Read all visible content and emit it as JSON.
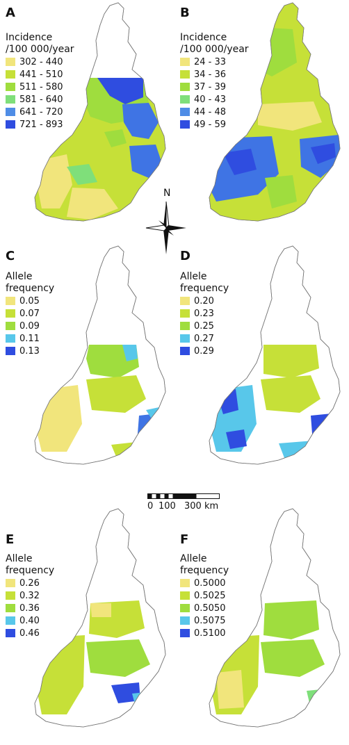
{
  "colors": {
    "yellow": "#f1e57c",
    "yellowgreen": "#c6e038",
    "green": "#9fdd3e",
    "lightgreen": "#7fdf7a",
    "cyan": "#58c7ea",
    "blue": "#3f74e4",
    "darkblue": "#2f4de0",
    "outline": "#777777"
  },
  "panels": [
    {
      "letter": "A",
      "title": [
        "Incidence",
        "/100 000/year"
      ],
      "items": [
        {
          "label": "302 - 440",
          "color": "#f1e57c"
        },
        {
          "label": "441 - 510",
          "color": "#c6e038"
        },
        {
          "label": "511 - 580",
          "color": "#9fdd3e"
        },
        {
          "label": "581 - 640",
          "color": "#7fdf7a"
        },
        {
          "label": "641 - 720",
          "color": "#4f8de6"
        },
        {
          "label": "721 - 893",
          "color": "#2f4de0"
        }
      ]
    },
    {
      "letter": "B",
      "title": [
        "Incidence",
        "/100 000/year"
      ],
      "items": [
        {
          "label": "24 - 33",
          "color": "#f1e57c"
        },
        {
          "label": "34 - 36",
          "color": "#c6e038"
        },
        {
          "label": "37 - 39",
          "color": "#9fdd3e"
        },
        {
          "label": "40 - 43",
          "color": "#7fdf7a"
        },
        {
          "label": "44 - 48",
          "color": "#4f8de6"
        },
        {
          "label": "49 - 59",
          "color": "#2f4de0"
        }
      ]
    },
    {
      "letter": "C",
      "title": [
        "Allele",
        "frequency"
      ],
      "items": [
        {
          "label": "0.05",
          "color": "#f1e57c"
        },
        {
          "label": "0.07",
          "color": "#c6e038"
        },
        {
          "label": "0.09",
          "color": "#9fdd3e"
        },
        {
          "label": "0.11",
          "color": "#58c7ea"
        },
        {
          "label": "0.13",
          "color": "#2f4de0"
        }
      ]
    },
    {
      "letter": "D",
      "title": [
        "Allele",
        "frequency"
      ],
      "items": [
        {
          "label": "0.20",
          "color": "#f1e57c"
        },
        {
          "label": "0.23",
          "color": "#c6e038"
        },
        {
          "label": "0.25",
          "color": "#9fdd3e"
        },
        {
          "label": "0.27",
          "color": "#58c7ea"
        },
        {
          "label": "0.29",
          "color": "#2f4de0"
        }
      ]
    },
    {
      "letter": "E",
      "title": [
        "Allele",
        "frequency"
      ],
      "items": [
        {
          "label": "0.26",
          "color": "#f1e57c"
        },
        {
          "label": "0.32",
          "color": "#c6e038"
        },
        {
          "label": "0.36",
          "color": "#9fdd3e"
        },
        {
          "label": "0.40",
          "color": "#58c7ea"
        },
        {
          "label": "0.46",
          "color": "#2f4de0"
        }
      ]
    },
    {
      "letter": "F",
      "title": [
        "Allele",
        "frequency"
      ],
      "items": [
        {
          "label": "0.5000",
          "color": "#f1e57c"
        },
        {
          "label": "0.5025",
          "color": "#c6e038"
        },
        {
          "label": "0.5050",
          "color": "#9fdd3e"
        },
        {
          "label": "0.5075",
          "color": "#58c7ea"
        },
        {
          "label": "0.5100",
          "color": "#2f4de0"
        }
      ]
    }
  ],
  "compass": {
    "north_label": "N"
  },
  "scale_bar": {
    "label_zero": "0",
    "label_mid": "100",
    "label_end": "300 km"
  }
}
